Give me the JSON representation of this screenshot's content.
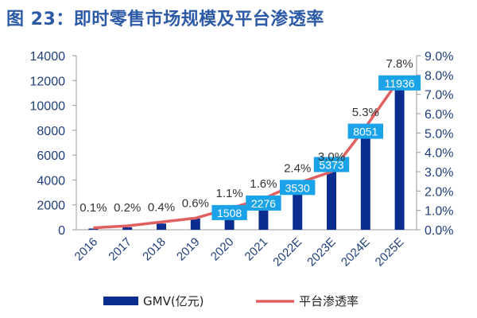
{
  "title": "图 23：即时零售市场规模及平台渗透率",
  "chart_data": {
    "type": "bar+line",
    "categories": [
      "2016",
      "2017",
      "2018",
      "2019",
      "2020",
      "2021",
      "2022E",
      "2023E",
      "2024E",
      "2025E"
    ],
    "series": [
      {
        "name": "GMV(亿元)",
        "type": "bar",
        "axis": "left",
        "values": [
          100,
          200,
          500,
          900,
          1508,
          2276,
          3530,
          5373,
          8051,
          11936
        ],
        "labels": [
          "",
          "",
          "",
          "",
          "1508",
          "2276",
          "3530",
          "5373",
          "8051",
          "11936"
        ]
      },
      {
        "name": "平台渗透率",
        "type": "line",
        "axis": "right",
        "values": [
          0.1,
          0.2,
          0.4,
          0.6,
          1.1,
          1.6,
          2.4,
          3.0,
          5.3,
          7.8
        ],
        "labels": [
          "0.1%",
          "0.2%",
          "0.4%",
          "0.6%",
          "1.1%",
          "1.6%",
          "2.4%",
          "3.0%",
          "5.3%",
          "7.8%"
        ]
      }
    ],
    "y_left": {
      "min": 0,
      "max": 14000,
      "ticks": [
        "0",
        "2000",
        "4000",
        "6000",
        "8000",
        "10000",
        "12000",
        "14000"
      ]
    },
    "y_right": {
      "min": 0,
      "max": 9.0,
      "ticks": [
        "0.0%",
        "1.0%",
        "2.0%",
        "3.0%",
        "4.0%",
        "5.0%",
        "6.0%",
        "7.0%",
        "8.0%",
        "9.0%"
      ]
    },
    "legend": {
      "position": "bottom",
      "bar_label": "GMV(亿元)",
      "line_label": "平台渗透率"
    },
    "colors": {
      "bar": "#0a2d8f",
      "line": "#e06060",
      "label_box": "#1aa3e8",
      "axis_text": "#1f3f7a",
      "title": "#2d5aa6"
    }
  }
}
